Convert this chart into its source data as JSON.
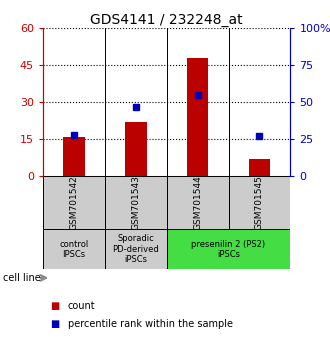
{
  "title": "GDS4141 / 232248_at",
  "samples": [
    "GSM701542",
    "GSM701543",
    "GSM701544",
    "GSM701545"
  ],
  "counts": [
    16,
    22,
    48,
    7
  ],
  "percentiles": [
    28,
    47,
    55,
    27
  ],
  "ylim_left": [
    0,
    60
  ],
  "ylim_right": [
    0,
    100
  ],
  "yticks_left": [
    0,
    15,
    30,
    45,
    60
  ],
  "yticks_right": [
    0,
    25,
    50,
    75,
    100
  ],
  "ytick_labels_left": [
    "0",
    "15",
    "30",
    "45",
    "60"
  ],
  "ytick_labels_right": [
    "0",
    "25",
    "50",
    "75",
    "100%"
  ],
  "bar_color": "#bb0000",
  "marker_color": "#0000bb",
  "bar_width": 0.35,
  "group_samples": [
    [
      0
    ],
    [
      1
    ],
    [
      2,
      3
    ]
  ],
  "group_labels": [
    "control\nIPSCs",
    "Sporadic\nPD-derived\niPSCs",
    "presenilin 2 (PS2)\niPSCs"
  ],
  "group_bg_colors": [
    "#cccccc",
    "#cccccc",
    "#44dd44"
  ],
  "sample_box_color": "#cccccc",
  "cell_line_label": "cell line",
  "legend_count_label": "count",
  "legend_pct_label": "percentile rank within the sample",
  "tick_color_left": "#cc0000",
  "tick_color_right": "#0000cc",
  "grid_linestyle": "dotted",
  "grid_color": "black",
  "grid_linewidth": 0.8
}
